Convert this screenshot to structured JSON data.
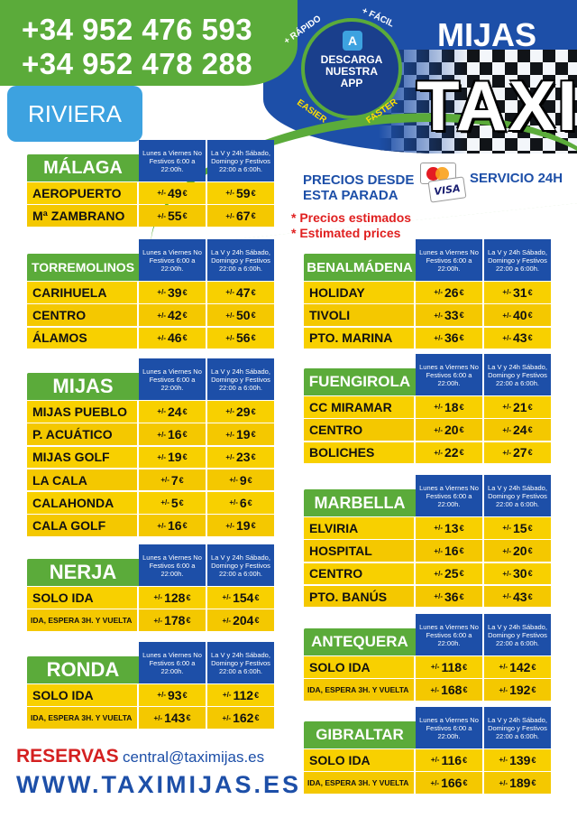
{
  "header": {
    "phone1": "+34 952 476 593",
    "phone2": "+34 952 478 288",
    "area": "RIVIERA",
    "app_badge": {
      "line1": "DESCARGA",
      "line2": "NUESTRA",
      "line3": "APP",
      "tag_fast": "+ RÁPIDO",
      "tag_easy": "+ FÁCIL",
      "tag_easier": "EASIER",
      "tag_faster": "FASTER"
    },
    "brand_top": "MIJAS",
    "brand_main": "TAXI",
    "prices_from_line1": "PRECIOS DESDE",
    "prices_from_line2": "ESTA PARADA",
    "service": "SERVICIO 24H",
    "estimate_es": "* Precios estimados",
    "estimate_en": "* Estimated prices",
    "card_visa": "VISA",
    "card_mc": "MasterCard"
  },
  "col_headers": {
    "weekday": "Lunes a Viernes No Festivos 6:00 a 22:00h.",
    "night": "La V y 24h Sábado, Domingo y Festivos 22:00 a 6:00h."
  },
  "currency": "€",
  "plusminus": "+/-",
  "blocks": [
    {
      "name": "MÁLAGA",
      "rows": [
        {
          "label": "AEROPUERTO",
          "p1": "49",
          "p2": "59"
        },
        {
          "label": "Mª ZAMBRANO",
          "p1": "55",
          "p2": "67"
        }
      ]
    },
    {
      "name": "TORREMOLINOS",
      "rows": [
        {
          "label": "CARIHUELA",
          "p1": "39",
          "p2": "47"
        },
        {
          "label": "CENTRO",
          "p1": "42",
          "p2": "50"
        },
        {
          "label": "ÁLAMOS",
          "p1": "46",
          "p2": "56"
        }
      ]
    },
    {
      "name": "MIJAS",
      "rows": [
        {
          "label": "MIJAS PUEBLO",
          "p1": "24",
          "p2": "29"
        },
        {
          "label": "P. ACUÁTICO",
          "p1": "16",
          "p2": "19"
        },
        {
          "label": "MIJAS GOLF",
          "p1": "19",
          "p2": "23"
        },
        {
          "label": "LA CALA",
          "p1": "7",
          "p2": "9"
        },
        {
          "label": "CALAHONDA",
          "p1": "5",
          "p2": "6"
        },
        {
          "label": "CALA GOLF",
          "p1": "16",
          "p2": "19"
        }
      ]
    },
    {
      "name": "NERJA",
      "rows": [
        {
          "label": "SOLO IDA",
          "p1": "128",
          "p2": "154"
        },
        {
          "label": "IDA, ESPERA 3H. Y VUELTA",
          "p1": "178",
          "p2": "204",
          "small": true
        }
      ]
    },
    {
      "name": "RONDA",
      "rows": [
        {
          "label": "SOLO IDA",
          "p1": "93",
          "p2": "112"
        },
        {
          "label": "IDA, ESPERA 3H. Y VUELTA",
          "p1": "143",
          "p2": "162",
          "small": true
        }
      ]
    },
    {
      "name": "BENALMÁDENA",
      "rows": [
        {
          "label": "HOLIDAY",
          "p1": "26",
          "p2": "31"
        },
        {
          "label": "TIVOLI",
          "p1": "33",
          "p2": "40"
        },
        {
          "label": "PTO. MARINA",
          "p1": "36",
          "p2": "43"
        }
      ]
    },
    {
      "name": "FUENGIROLA",
      "rows": [
        {
          "label": "CC MIRAMAR",
          "p1": "18",
          "p2": "21"
        },
        {
          "label": "CENTRO",
          "p1": "20",
          "p2": "24"
        },
        {
          "label": "BOLICHES",
          "p1": "22",
          "p2": "27"
        }
      ]
    },
    {
      "name": "MARBELLA",
      "rows": [
        {
          "label": "ELVIRIA",
          "p1": "13",
          "p2": "15"
        },
        {
          "label": "HOSPITAL",
          "p1": "16",
          "p2": "20"
        },
        {
          "label": "CENTRO",
          "p1": "25",
          "p2": "30"
        },
        {
          "label": "PTO. BANÚS",
          "p1": "36",
          "p2": "43"
        }
      ]
    },
    {
      "name": "ANTEQUERA",
      "rows": [
        {
          "label": "SOLO IDA",
          "p1": "118",
          "p2": "142"
        },
        {
          "label": "IDA, ESPERA 3H. Y VUELTA",
          "p1": "168",
          "p2": "192",
          "small": true
        }
      ]
    },
    {
      "name": "GIBRALTAR",
      "rows": [
        {
          "label": "SOLO IDA",
          "p1": "116",
          "p2": "139"
        },
        {
          "label": "IDA, ESPERA 3H. Y VUELTA",
          "p1": "166",
          "p2": "189",
          "small": true
        }
      ]
    }
  ],
  "footer": {
    "reservas": "RESERVAS",
    "email": "central@taximijas.es",
    "website": "WWW.TAXIMIJAS.ES"
  },
  "colors": {
    "green": "#5bab3a",
    "blue": "#1d4fa8",
    "yellow": "#f8d000",
    "red": "#d42020"
  }
}
